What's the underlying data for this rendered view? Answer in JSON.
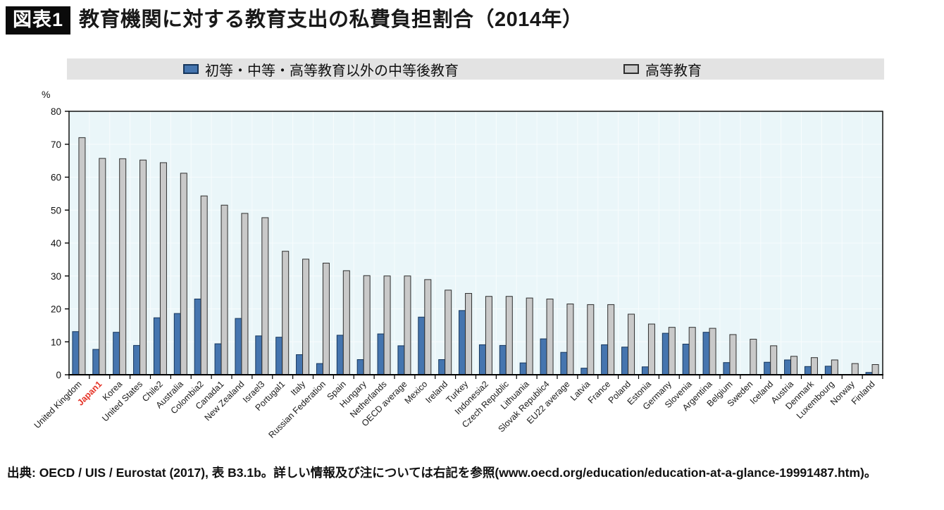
{
  "figure": {
    "badge": "図表1",
    "title": "教育機関に対する教育支出の私費負担割合（2014年）"
  },
  "chart_data": {
    "type": "bar",
    "title": "教育機関に対する教育支出の私費負担割合（2014年）",
    "unit_label": "%",
    "xlabel": "",
    "ylabel": "%",
    "ylim": [
      0,
      80
    ],
    "ytick_interval": 10,
    "grid": true,
    "legend_position": "top",
    "plot_background": "#eaf6f9",
    "gridline_color": "#f7fcfd",
    "axis_color": "#000000",
    "highlight_category": "Japan1",
    "highlight_color": "#e53226",
    "categories": [
      "United Kingdom",
      "Japan1",
      "Korea",
      "United States",
      "Chile2",
      "Australia",
      "Colombia2",
      "Canada1",
      "New Zealand",
      "Israel3",
      "Portugal1",
      "Italy",
      "Russian Federation",
      "Spain",
      "Hungary",
      "Netherlands",
      "OECD average",
      "Mexico",
      "Ireland",
      "Turkey",
      "Indonesia2",
      "Czech Republic",
      "Lithuania",
      "Slovak Republic4",
      "EU22 average",
      "Latvia",
      "France",
      "Poland",
      "Estonia",
      "Germany",
      "Slovenia",
      "Argentina",
      "Belgium",
      "Sweden",
      "Iceland",
      "Austria",
      "Denmark",
      "Luxembourg",
      "Norway",
      "Finland"
    ],
    "series": [
      {
        "name": "初等・中等・高等教育以外の中等後教育",
        "color": "#4575af",
        "border_color": "#16365c",
        "values": [
          13.1,
          7.7,
          12.9,
          8.9,
          17.3,
          18.6,
          23.0,
          9.4,
          17.1,
          11.8,
          11.4,
          6.1,
          3.4,
          12.0,
          4.6,
          12.4,
          8.8,
          17.5,
          4.6,
          19.5,
          9.1,
          8.9,
          3.6,
          10.9,
          6.8,
          2.0,
          9.1,
          8.4,
          2.4,
          12.6,
          9.3,
          12.9,
          3.7,
          null,
          3.8,
          4.5,
          2.5,
          2.6,
          null,
          0.7
        ]
      },
      {
        "name": "高等教育",
        "color": "#c9c9c9",
        "border_color": "#2f2f2f",
        "values": [
          72.0,
          65.7,
          65.6,
          65.2,
          64.4,
          61.2,
          54.3,
          51.5,
          49.0,
          47.7,
          37.5,
          35.1,
          33.9,
          31.6,
          30.1,
          30.0,
          30.0,
          28.9,
          25.7,
          24.7,
          23.8,
          23.8,
          23.3,
          23.0,
          21.5,
          21.3,
          21.3,
          18.4,
          15.4,
          14.4,
          14.4,
          14.1,
          12.2,
          10.8,
          8.8,
          5.6,
          5.2,
          4.5,
          3.4,
          3.1
        ]
      }
    ]
  },
  "footer": {
    "source": "出典: OECD / UIS / Eurostat (2017), 表 B3.1b。詳しい情報及び注については右記を参照(www.oecd.org/education/education-at-a-glance-19991487.htm)。"
  }
}
